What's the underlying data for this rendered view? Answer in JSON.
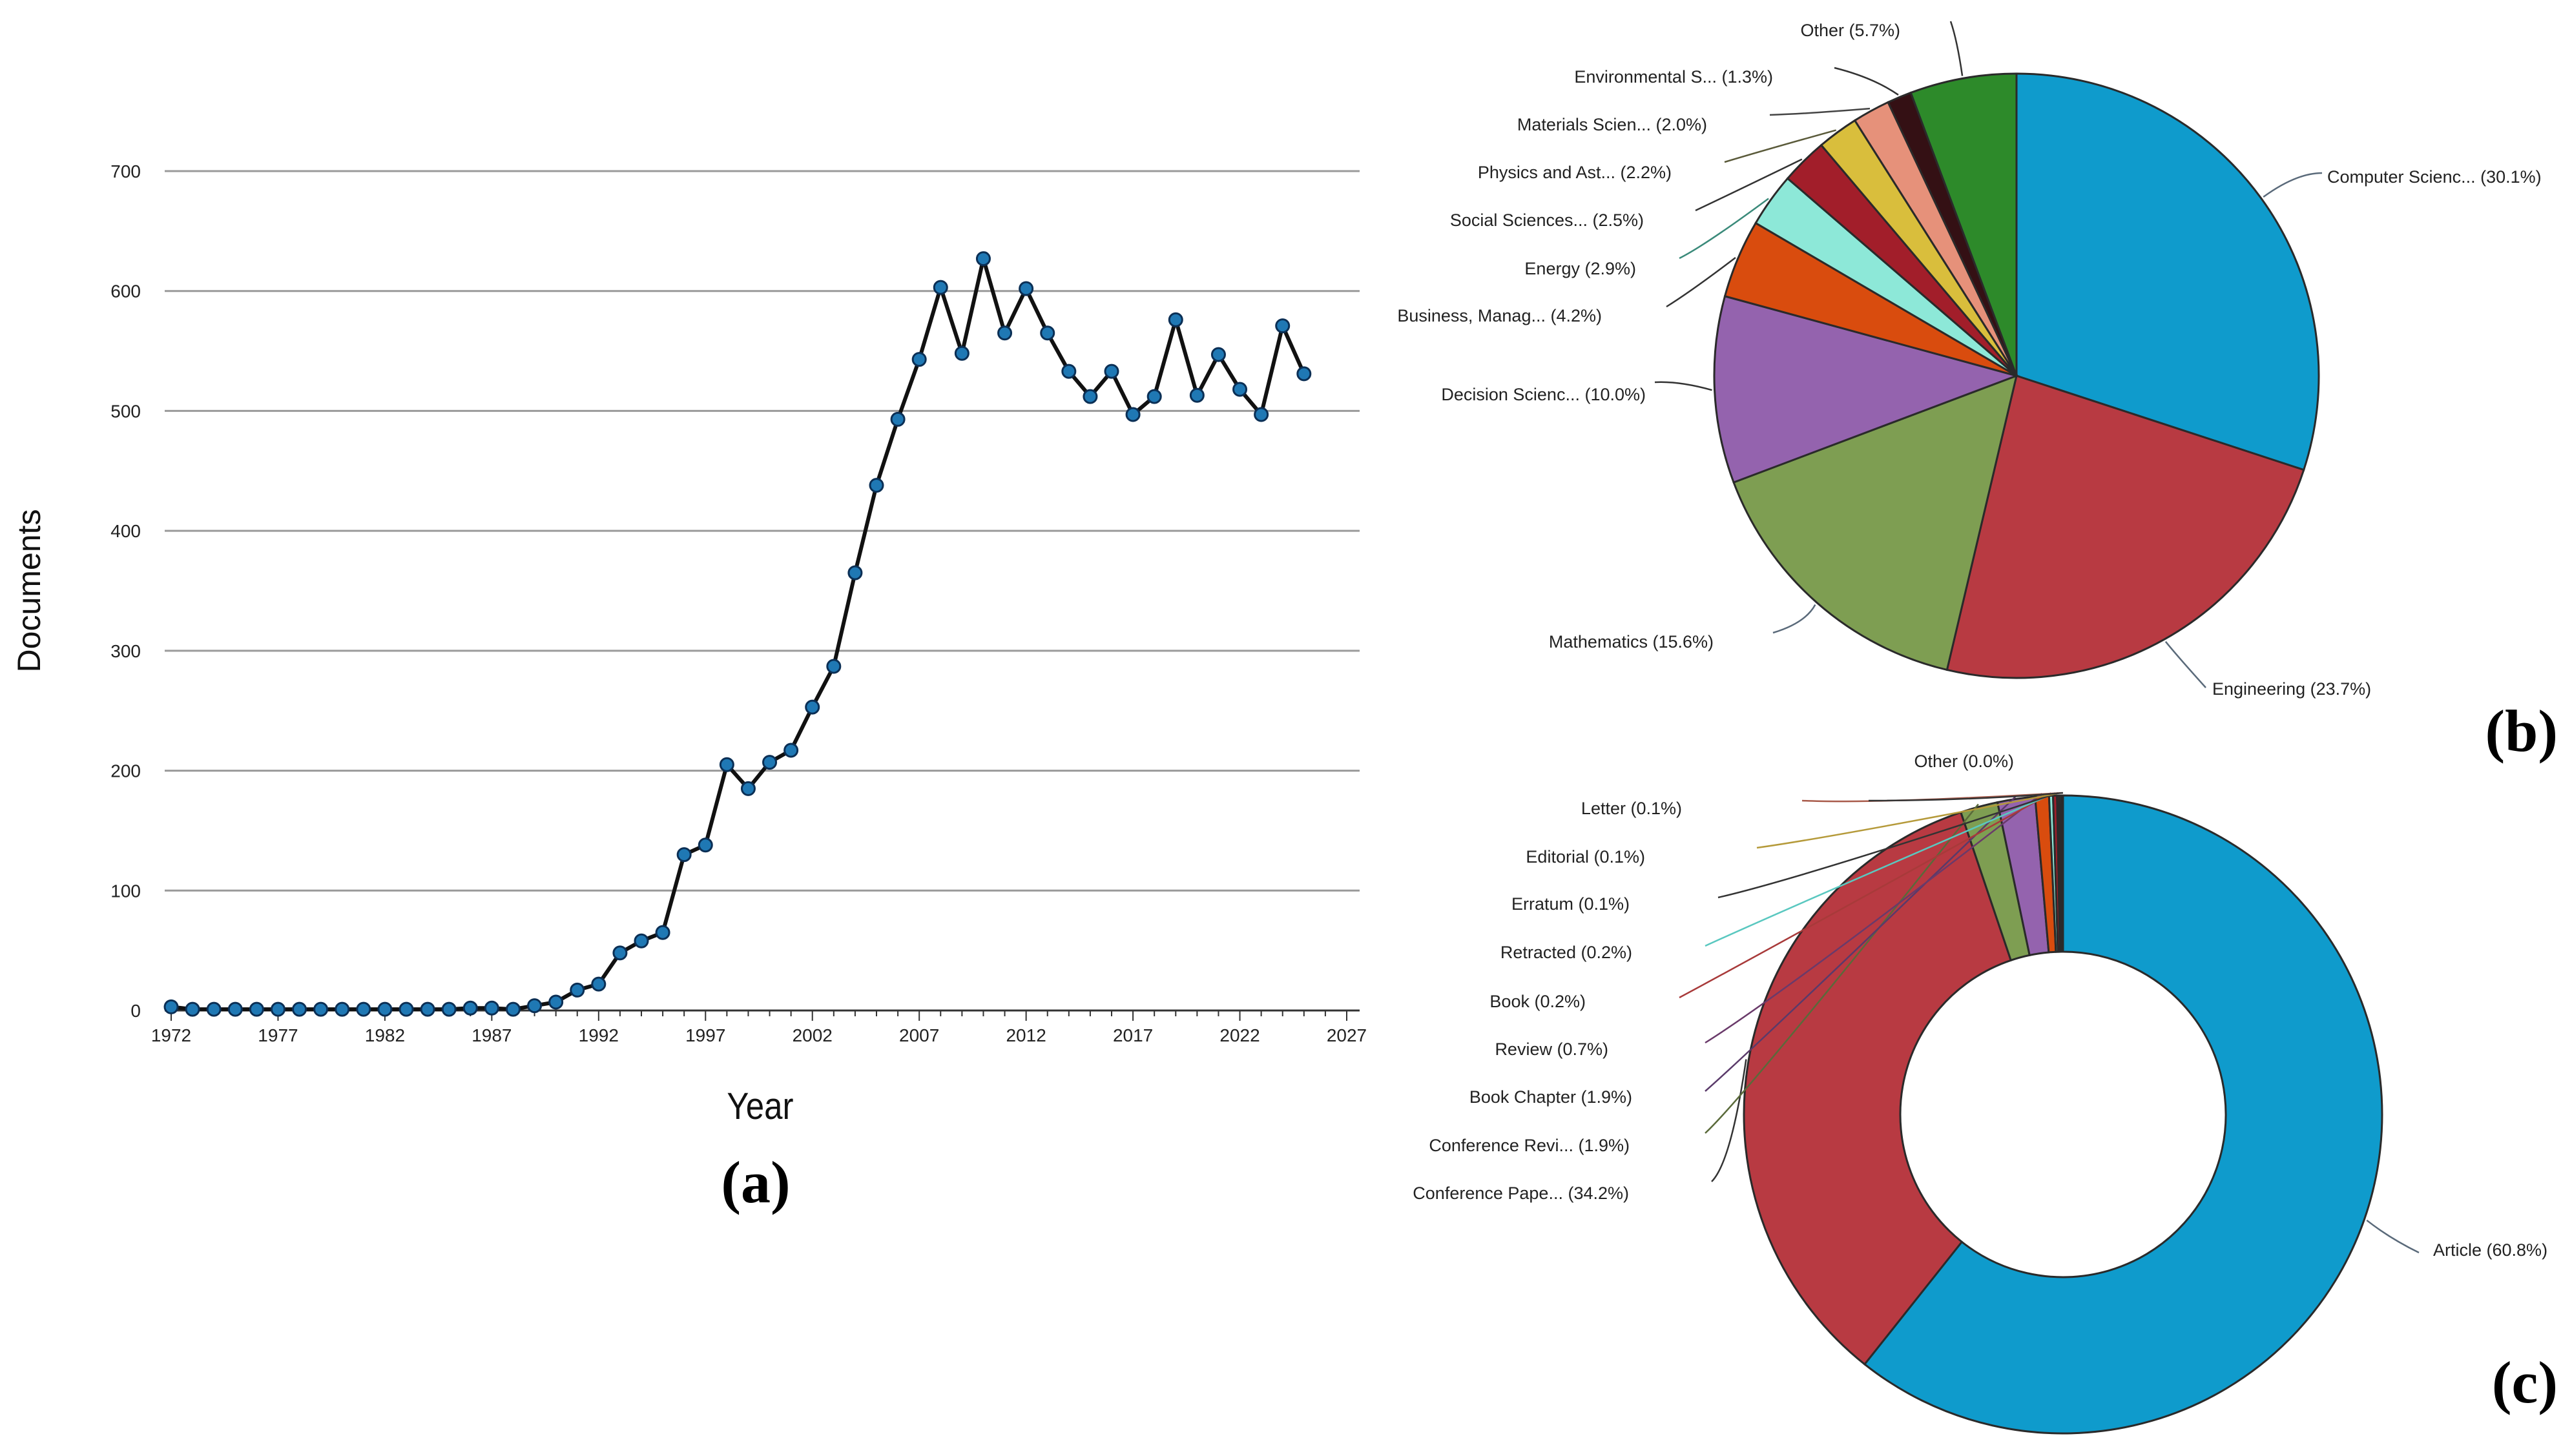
{
  "colors": {
    "line": "#111111",
    "marker": "#1f78b4",
    "grid": "#9a9a9a"
  },
  "chart_data": [
    {
      "type": "line",
      "panel_label": "(a)",
      "xlabel": "Year",
      "ylabel": "Documents",
      "xlim": [
        1972,
        2027
      ],
      "ylim": [
        0,
        700
      ],
      "xticks": [
        1972,
        1977,
        1982,
        1987,
        1992,
        1997,
        2002,
        2007,
        2012,
        2017,
        2022,
        2027
      ],
      "yticks": [
        0,
        100,
        200,
        300,
        400,
        500,
        600,
        700
      ],
      "grid": true,
      "x": [
        1972,
        1973,
        1974,
        1975,
        1976,
        1977,
        1978,
        1979,
        1980,
        1981,
        1982,
        1983,
        1984,
        1985,
        1986,
        1987,
        1988,
        1989,
        1990,
        1991,
        1992,
        1993,
        1994,
        1995,
        1996,
        1997,
        1998,
        1999,
        2000,
        2001,
        2002,
        2003,
        2004,
        2005,
        2006,
        2007,
        2008,
        2009,
        2010,
        2011,
        2012,
        2013,
        2014,
        2015,
        2016,
        2017,
        2018,
        2019,
        2020,
        2021,
        2022,
        2023,
        2024,
        2025
      ],
      "y": [
        3,
        1,
        1,
        1,
        1,
        1,
        1,
        1,
        1,
        1,
        1,
        1,
        1,
        1,
        2,
        2,
        1,
        4,
        7,
        17,
        22,
        48,
        58,
        65,
        130,
        138,
        205,
        185,
        207,
        217,
        253,
        287,
        365,
        438,
        493,
        543,
        603,
        548,
        627,
        565,
        602,
        565,
        533,
        512,
        533,
        497,
        512,
        576,
        513,
        547,
        518,
        497,
        571,
        531
      ]
    },
    {
      "type": "pie",
      "panel_label": "(b)",
      "slices": [
        {
          "label": "Computer Scienc... (30.1%)",
          "value": 30.1,
          "color": "#0f9bcc"
        },
        {
          "label": "Engineering (23.7%)",
          "value": 23.7,
          "color": "#b83a42"
        },
        {
          "label": "Mathematics (15.6%)",
          "value": 15.6,
          "color": "#7e9e52"
        },
        {
          "label": "Decision Scienc... (10.0%)",
          "value": 10.0,
          "color": "#9463ae"
        },
        {
          "label": "Business, Manag... (4.2%)",
          "value": 4.2,
          "color": "#d94c0e"
        },
        {
          "label": "Energy (2.9%)",
          "value": 2.9,
          "color": "#8de8d8"
        },
        {
          "label": "Social Sciences... (2.5%)",
          "value": 2.5,
          "color": "#a21e2a"
        },
        {
          "label": "Physics and Ast... (2.2%)",
          "value": 2.2,
          "color": "#d9be3c"
        },
        {
          "label": "Materials Scien... (2.0%)",
          "value": 2.0,
          "color": "#e6917a"
        },
        {
          "label": "Environmental S... (1.3%)",
          "value": 1.3,
          "color": "#341014"
        },
        {
          "label": "Other (5.7%)",
          "value": 5.7,
          "color": "#2d8a2a"
        }
      ]
    },
    {
      "type": "pie",
      "panel_label": "(c)",
      "donut": true,
      "slices": [
        {
          "label": "Article (60.8%)",
          "value": 60.8,
          "color": "#0f9bcc"
        },
        {
          "label": "Conference Pape... (34.2%)",
          "value": 34.2,
          "color": "#b83a42"
        },
        {
          "label": "Conference Revi... (1.9%)",
          "value": 1.9,
          "color": "#7e9e52"
        },
        {
          "label": "Book Chapter (1.9%)",
          "value": 1.9,
          "color": "#9463ae"
        },
        {
          "label": "Review (0.7%)",
          "value": 0.7,
          "color": "#d94c0e"
        },
        {
          "label": "Book (0.2%)",
          "value": 0.2,
          "color": "#8de8d8"
        },
        {
          "label": "Retracted (0.2%)",
          "value": 0.2,
          "color": "#a21e2a"
        },
        {
          "label": "Erratum (0.1%)",
          "value": 0.1,
          "color": "#d9be3c"
        },
        {
          "label": "Editorial (0.1%)",
          "value": 0.1,
          "color": "#e6917a"
        },
        {
          "label": "Letter (0.1%)",
          "value": 0.1,
          "color": "#341014"
        },
        {
          "label": "Other (0.0%)",
          "value": 0.0,
          "color": "#2d8a2a"
        }
      ]
    }
  ]
}
